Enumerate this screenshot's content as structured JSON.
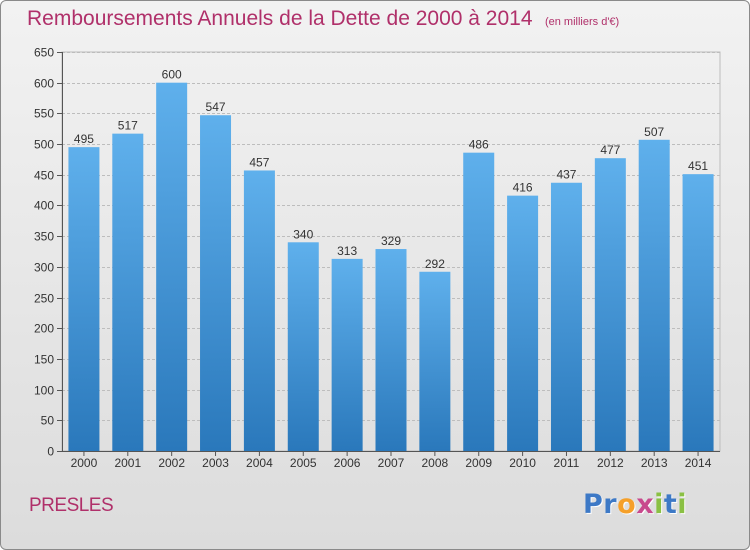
{
  "title": "Remboursements Annuels de la Dette de 2000 à 2014",
  "unit_label": "(en milliers d'€)",
  "commune": "PRESLES",
  "logo": {
    "text": "Proxiti",
    "letters": [
      {
        "ch": "P",
        "color": "#3d79c6"
      },
      {
        "ch": "r",
        "color": "#3d79c6"
      },
      {
        "ch": "o",
        "color": "#f5a02a"
      },
      {
        "ch": "x",
        "color": "#c84a8d"
      },
      {
        "ch": "i",
        "color": "#8ac043"
      },
      {
        "ch": "t",
        "color": "#3d79c6"
      },
      {
        "ch": "i",
        "color": "#8ac043"
      }
    ]
  },
  "colors": {
    "title": "#b0306a",
    "bar_top": "#5fb0ec",
    "bar_bottom": "#2a78bb",
    "axis": "#555555",
    "grid": "#bdbdbd"
  },
  "chart_data": {
    "type": "bar",
    "categories": [
      "2000",
      "2001",
      "2002",
      "2003",
      "2004",
      "2005",
      "2006",
      "2007",
      "2008",
      "2009",
      "2010",
      "2011",
      "2012",
      "2013",
      "2014"
    ],
    "values": [
      495,
      517,
      600,
      547,
      457,
      340,
      313,
      329,
      292,
      486,
      416,
      437,
      477,
      507,
      451
    ],
    "ylim": [
      0,
      650
    ],
    "yticks": [
      0,
      50,
      100,
      150,
      200,
      250,
      300,
      350,
      400,
      450,
      500,
      550,
      600,
      650
    ],
    "grid": true,
    "data_labels": true
  }
}
